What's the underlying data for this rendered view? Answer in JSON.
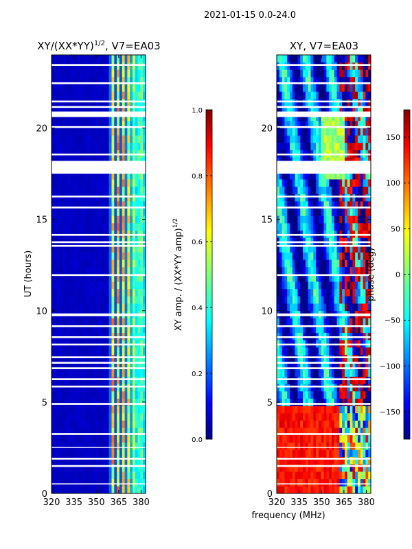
{
  "suptitle": "2021-01-15 0.0-24.0",
  "shared": {
    "ylabel": "UT (hours)",
    "xlabel": "frequency (MHz)"
  },
  "colors": {
    "masked": "#ffffff",
    "jet": [
      "#00007f",
      "#0000ff",
      "#007fff",
      "#00ffff",
      "#7fff7f",
      "#ffff00",
      "#ff7f00",
      "#ff0000",
      "#7f0000"
    ]
  },
  "chart_data": [
    {
      "type": "heatmap",
      "title_text": "XY/(XX*YY)",
      "title_sup": "1/2",
      "title_suffix": ", V7=EA03",
      "xlabel": "frequency (MHz)",
      "ylabel": "UT (hours)",
      "xlim": [
        320,
        383
      ],
      "ylim": [
        0,
        24
      ],
      "xticks": [
        320,
        335,
        350,
        365,
        380
      ],
      "yticks": [
        0,
        5,
        10,
        15,
        20
      ],
      "colorbar": {
        "label_text": "XY amp. / (XX*YY amp)",
        "label_sup": "1/2",
        "vmin": 0.0,
        "vmax": 1.0,
        "ticks": [
          "0.0",
          "0.2",
          "0.4",
          "0.6",
          "0.8",
          "1.0"
        ],
        "tick_values": [
          0.0,
          0.2,
          0.4,
          0.6,
          0.8,
          1.0
        ]
      },
      "description_values": {
        "background_level": 0.05,
        "active_band_mhz": [
          359,
          383
        ],
        "active_band_level_range": [
          0.2,
          0.7
        ]
      },
      "masked_hours": [
        [
          0.5,
          0.55
        ],
        [
          1.45,
          1.55
        ],
        [
          1.85,
          1.95
        ],
        [
          2.5,
          2.55
        ],
        [
          3.2,
          3.3
        ],
        [
          4.85,
          4.95
        ],
        [
          5.8,
          5.9
        ],
        [
          6.2,
          6.3
        ],
        [
          6.8,
          6.9
        ],
        [
          7.1,
          7.2
        ],
        [
          7.4,
          7.5
        ],
        [
          8.1,
          8.2
        ],
        [
          8.5,
          8.6
        ],
        [
          9.1,
          9.2
        ],
        [
          9.7,
          9.85
        ],
        [
          11.9,
          12.0
        ],
        [
          13.5,
          13.6
        ],
        [
          13.7,
          13.8
        ],
        [
          14.1,
          14.2
        ],
        [
          15.6,
          15.7
        ],
        [
          16.2,
          16.3
        ],
        [
          17.5,
          18.2
        ],
        [
          18.5,
          18.6
        ],
        [
          20.0,
          20.1
        ],
        [
          20.6,
          20.9
        ],
        [
          21.1,
          21.2
        ],
        [
          21.4,
          21.5
        ],
        [
          22.4,
          22.5
        ],
        [
          23.4,
          23.5
        ]
      ]
    },
    {
      "type": "heatmap",
      "title_text": "XY, V7=EA03",
      "xlabel": "frequency (MHz)",
      "ylabel": "UT (hours)",
      "xlim": [
        320,
        383
      ],
      "ylim": [
        0,
        24
      ],
      "xticks": [
        320,
        335,
        350,
        365,
        380
      ],
      "yticks": [
        0,
        5,
        10,
        15,
        20
      ],
      "colorbar": {
        "label_text": "phase (deg)",
        "vmin": -180,
        "vmax": 180,
        "ticks": [
          "−150",
          "−100",
          "−50",
          "0",
          "50",
          "100",
          "150"
        ],
        "tick_values": [
          -150,
          -100,
          -50,
          0,
          50,
          100,
          150
        ]
      },
      "description_values": {
        "early_hours_level_deg": 130,
        "early_hours_range": [
          0,
          4.9
        ]
      },
      "masked_hours": [
        [
          0.5,
          0.55
        ],
        [
          1.45,
          1.55
        ],
        [
          1.85,
          1.95
        ],
        [
          2.5,
          2.55
        ],
        [
          3.2,
          3.3
        ],
        [
          4.85,
          4.95
        ],
        [
          5.8,
          5.9
        ],
        [
          6.2,
          6.3
        ],
        [
          6.8,
          6.9
        ],
        [
          7.1,
          7.2
        ],
        [
          7.4,
          7.5
        ],
        [
          8.1,
          8.2
        ],
        [
          8.5,
          8.6
        ],
        [
          9.1,
          9.2
        ],
        [
          9.7,
          9.85
        ],
        [
          11.9,
          12.0
        ],
        [
          13.5,
          13.6
        ],
        [
          13.7,
          13.8
        ],
        [
          14.1,
          14.2
        ],
        [
          15.6,
          15.7
        ],
        [
          16.2,
          16.3
        ],
        [
          17.5,
          18.2
        ],
        [
          18.5,
          18.6
        ],
        [
          20.0,
          20.1
        ],
        [
          20.6,
          20.9
        ],
        [
          21.1,
          21.2
        ],
        [
          21.4,
          21.5
        ],
        [
          22.4,
          22.5
        ],
        [
          23.4,
          23.5
        ]
      ]
    }
  ]
}
